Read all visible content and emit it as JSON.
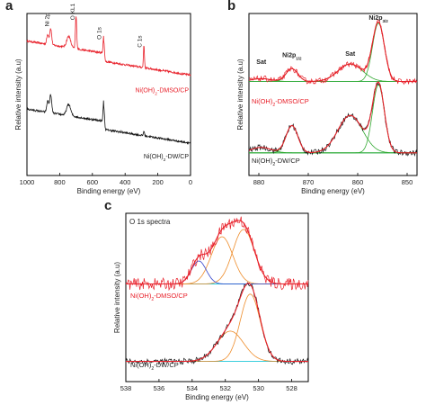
{
  "panels": [
    {
      "letter": "a",
      "xlabel": "Binding energy (eV)",
      "ylabel": "Relative intensity (a.u)",
      "xticks": [
        "1000",
        "800",
        "600",
        "400",
        "200",
        "0"
      ],
      "annotations": [
        "Ni 2p",
        "O KL1",
        "O 1s",
        "C 1s"
      ],
      "labels": [
        "Ni(OH)2-DMSO/CP",
        "Ni(OH)2-DW/CP"
      ]
    },
    {
      "letter": "b",
      "xlabel": "Binding energy (eV)",
      "ylabel": "Relative intensity (a.u)",
      "xticks": [
        "880",
        "870",
        "860",
        "850"
      ],
      "annotations": [
        "Sat",
        "Ni2p1/2",
        "Sat",
        "Ni2p3/2"
      ],
      "labels": [
        "Ni(OH)2-DMSO/CP",
        "Ni(OH)2-DW/CP"
      ]
    },
    {
      "letter": "c",
      "title": "O 1s spectra",
      "xlabel": "Binding energy (eV)",
      "ylabel": "Relative intensity (a.u)",
      "xticks": [
        "538",
        "536",
        "534",
        "532",
        "530",
        "528"
      ],
      "labels": [
        "Ni(OH)2-DMSO/CP",
        "Ni(OH)2-DW/CP"
      ]
    }
  ],
  "colors": {
    "dmso": "#e8202a",
    "dw": "#111111",
    "envelope": "#e8202a",
    "baseline": "#20c8d8",
    "peak_green": "#33aa33",
    "peak_orange": "#ee8c2a",
    "peak_blue": "#3344cc",
    "peak_magenta": "#dd44dd"
  },
  "chart_data": [
    {
      "type": "line",
      "xlim": [
        1000,
        0
      ],
      "series": [
        {
          "name": "Ni(OH)2-DMSO/CP",
          "offset": 0.62,
          "peaks": [
            [
              855,
              0.1,
              6
            ],
            [
              873,
              0.06,
              6
            ],
            [
              745,
              0.07,
              12
            ],
            [
              700,
              0.2,
              4
            ],
            [
              530,
              0.12,
              4
            ],
            [
              285,
              0.14,
              3
            ]
          ]
        },
        {
          "name": "Ni(OH)2-DW/CP",
          "offset": 0.2,
          "peaks": [
            [
              855,
              0.11,
              6
            ],
            [
              873,
              0.07,
              6
            ],
            [
              745,
              0.07,
              12
            ],
            [
              530,
              0.14,
              4
            ],
            [
              285,
              0.03,
              3
            ]
          ]
        }
      ]
    },
    {
      "type": "line",
      "xlim": [
        882,
        848
      ],
      "series": [
        {
          "name": "Ni(OH)2-DMSO/CP",
          "offset": 0.58,
          "amp": 0.36,
          "components": [
            [
              855.8,
              1.0,
              1.2
            ],
            [
              861.5,
              0.3,
              2.5
            ],
            [
              873.3,
              0.22,
              1.2
            ],
            [
              879.5,
              0.05,
              2.0
            ]
          ]
        },
        {
          "name": "Ni(OH)2-DW/CP",
          "offset": 0.14,
          "amp": 0.42,
          "components": [
            [
              855.8,
              1.0,
              1.2
            ],
            [
              861.5,
              0.55,
              2.5
            ],
            [
              873.3,
              0.4,
              1.2
            ],
            [
              879.5,
              0.08,
              2.0
            ]
          ]
        }
      ]
    },
    {
      "type": "line",
      "xlim": [
        538,
        527
      ],
      "series": [
        {
          "name": "Ni(OH)2-DMSO/CP",
          "offset": 0.58,
          "amp": 0.36,
          "components": [
            [
              530.9,
              0.9,
              0.65
            ],
            [
              532.2,
              0.78,
              0.65
            ],
            [
              533.6,
              0.38,
              0.45
            ]
          ]
        },
        {
          "name": "Ni(OH)2-DW/CP",
          "offset": 0.12,
          "amp": 0.4,
          "components": [
            [
              530.5,
              1.0,
              0.6
            ],
            [
              531.7,
              0.45,
              0.8
            ]
          ]
        }
      ]
    }
  ]
}
